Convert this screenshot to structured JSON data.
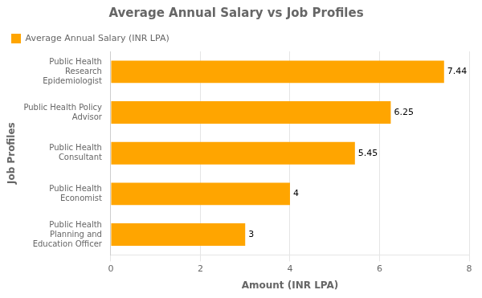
{
  "chart_data": {
    "type": "bar",
    "orientation": "horizontal",
    "title": "Average Annual Salary vs Job Profiles",
    "x_label": "Amount (INR LPA)",
    "y_label": "Job Profiles",
    "categories": [
      "Public Health\nResearch\nEpidemiologist",
      "Public Health Policy\nAdvisor",
      "Public Health\nConsultant",
      "Public Health\nEconomist",
      "Public Health\nPlanning and\nEducation Officer"
    ],
    "series": [
      {
        "name": "Average Annual Salary (INR LPA)",
        "color": "#FFA500",
        "values": [
          7.44,
          6.25,
          5.45,
          4,
          3
        ]
      }
    ],
    "xlim": [
      0,
      8
    ],
    "xticks": [
      0,
      2,
      4,
      6,
      8
    ],
    "grid": true,
    "legend": "upper left",
    "data_labels": true
  }
}
